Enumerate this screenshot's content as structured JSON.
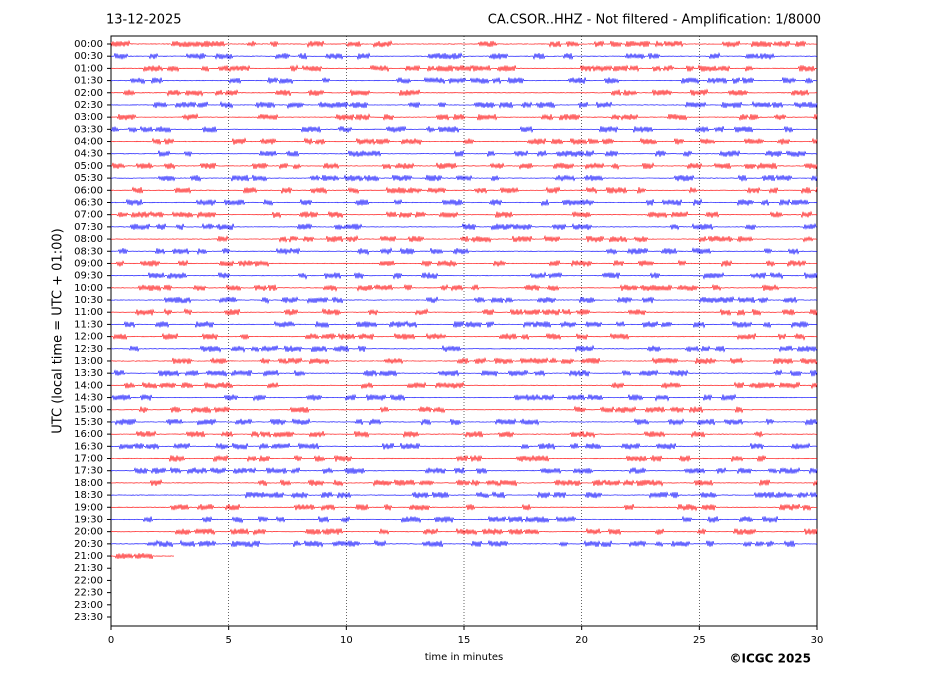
{
  "chart_data": {
    "type": "helicorder",
    "date": "13-12-2025",
    "title": "CA.CSOR..HHZ - Not filtered - Amplification: 1/8000",
    "xlabel": "time in minutes",
    "ylabel": "UTC (local time = UTC + 01:00)",
    "credit": "©ICGC 2025",
    "xlim": [
      0,
      30
    ],
    "xticks": [
      0,
      5,
      10,
      15,
      20,
      25,
      30
    ],
    "grid": true,
    "colors": [
      "#ff0000",
      "#0000ff"
    ],
    "categories": [
      "00:00",
      "00:30",
      "01:00",
      "01:30",
      "02:00",
      "02:30",
      "03:00",
      "03:30",
      "04:00",
      "04:30",
      "05:00",
      "05:30",
      "06:00",
      "06:30",
      "07:00",
      "07:30",
      "08:00",
      "08:30",
      "09:00",
      "09:30",
      "10:00",
      "10:30",
      "11:00",
      "11:30",
      "12:00",
      "12:30",
      "13:00",
      "13:30",
      "14:00",
      "14:30",
      "15:00",
      "15:30",
      "16:00",
      "16:30",
      "17:00",
      "17:30",
      "18:00",
      "18:30",
      "19:00",
      "19:30",
      "20:00",
      "20:30",
      "21:00",
      "21:30",
      "22:00",
      "22:30",
      "23:00",
      "23:30"
    ],
    "values": [
      30,
      30,
      30,
      30,
      30,
      30,
      30,
      30,
      30,
      30,
      30,
      30,
      30,
      30,
      30,
      30,
      30,
      30,
      30,
      30,
      30,
      30,
      30,
      30,
      30,
      30,
      30,
      30,
      30,
      30,
      30,
      30,
      30,
      30,
      30,
      30,
      30,
      30,
      30,
      30,
      30,
      30,
      2.7,
      null,
      null,
      null,
      null,
      null
    ]
  }
}
